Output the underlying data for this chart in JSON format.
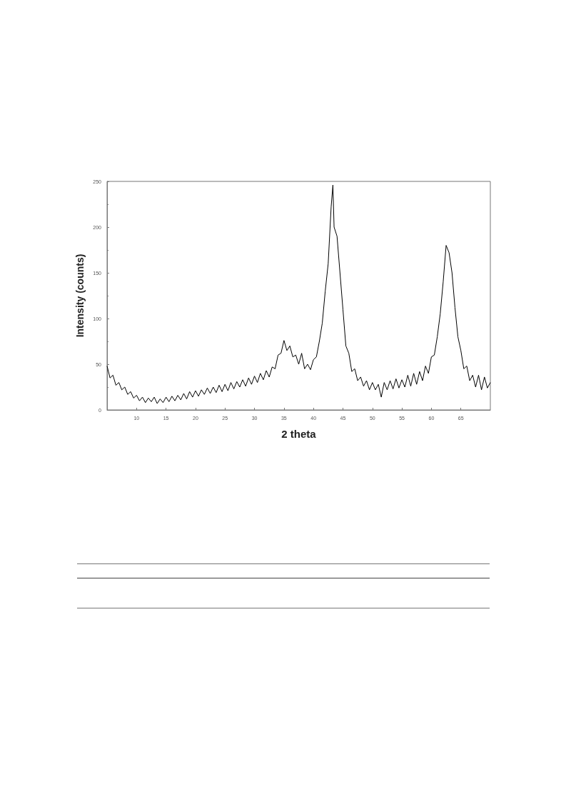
{
  "chart_data": {
    "type": "line",
    "xlabel": "2 theta",
    "ylabel": "Intensity (counts)",
    "xlim": [
      5,
      70
    ],
    "xticks": [
      10,
      15,
      20,
      25,
      30,
      35,
      40,
      45,
      50,
      55,
      60,
      65
    ],
    "ylim": [
      0,
      250
    ],
    "yticks": [
      0,
      50,
      100,
      150,
      200,
      250
    ],
    "grid": false,
    "marker": "none",
    "line_style": "solid",
    "series": [
      {
        "color": "#000000",
        "x": [
          5,
          5.5,
          6,
          6.5,
          7,
          7.5,
          8,
          8.5,
          9,
          9.5,
          10,
          10.5,
          11,
          11.5,
          12,
          12.5,
          13,
          13.5,
          14,
          14.5,
          15,
          15.5,
          16,
          16.5,
          17,
          17.5,
          18,
          18.5,
          19,
          19.5,
          20,
          20.5,
          21,
          21.5,
          22,
          22.5,
          23,
          23.5,
          24,
          24.5,
          25,
          25.5,
          26,
          26.5,
          27,
          27.5,
          28,
          28.5,
          29,
          29.5,
          30,
          30.5,
          31,
          31.5,
          32,
          32.5,
          33,
          33.5,
          34,
          34.5,
          35,
          35.5,
          36,
          36.5,
          37,
          37.5,
          38,
          38.5,
          39,
          39.5,
          40,
          40.5,
          41,
          41.5,
          42,
          42.5,
          43,
          43.3,
          43.5,
          44,
          44.5,
          45,
          45.5,
          46,
          46.5,
          47,
          47.5,
          48,
          48.5,
          49,
          49.5,
          50,
          50.5,
          51,
          51.5,
          52,
          52.5,
          53,
          53.5,
          54,
          54.5,
          55,
          55.5,
          56,
          56.5,
          57,
          57.5,
          58,
          58.5,
          59,
          59.5,
          60,
          60.5,
          61,
          61.5,
          62,
          62.5,
          63,
          63.5,
          64,
          64.5,
          65,
          65.5,
          66,
          66.5,
          67,
          67.5,
          68,
          68.5,
          69,
          69.5,
          70
        ],
        "values": [
          48,
          35,
          38,
          27,
          30,
          22,
          25,
          17,
          20,
          13,
          16,
          10,
          14,
          8,
          13,
          9,
          14,
          7,
          12,
          8,
          14,
          9,
          15,
          10,
          16,
          11,
          18,
          12,
          20,
          14,
          21,
          15,
          22,
          17,
          24,
          18,
          25,
          19,
          27,
          20,
          28,
          21,
          30,
          23,
          31,
          25,
          33,
          26,
          35,
          28,
          37,
          30,
          40,
          33,
          43,
          36,
          47,
          45,
          60,
          62,
          76,
          65,
          70,
          58,
          60,
          50,
          62,
          45,
          50,
          44,
          55,
          58,
          75,
          95,
          130,
          160,
          222,
          246,
          200,
          190,
          150,
          110,
          70,
          62,
          42,
          45,
          32,
          36,
          26,
          32,
          22,
          30,
          22,
          28,
          14,
          30,
          22,
          32,
          23,
          34,
          24,
          33,
          25,
          38,
          26,
          40,
          28,
          42,
          32,
          48,
          40,
          58,
          60,
          80,
          105,
          140,
          180,
          172,
          150,
          112,
          80,
          65,
          45,
          48,
          32,
          38,
          25,
          38,
          22,
          36,
          24,
          30
        ]
      }
    ]
  }
}
